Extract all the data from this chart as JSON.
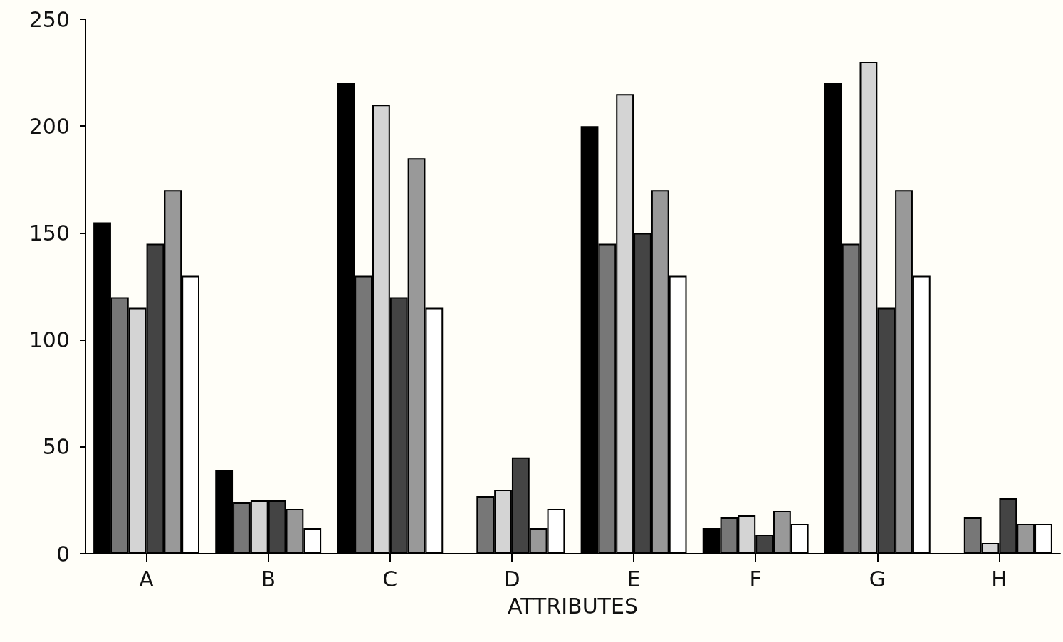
{
  "chart_data": {
    "type": "bar",
    "xlabel": "ATTRIBUTES",
    "categories": [
      "A",
      "B",
      "C",
      "D",
      "E",
      "F",
      "G",
      "H"
    ],
    "series": [
      {
        "color": "#000000",
        "values": [
          155,
          39,
          220,
          0,
          200,
          12,
          220,
          0
        ]
      },
      {
        "color": "#777777",
        "values": [
          120,
          24,
          130,
          27,
          145,
          17,
          145,
          17
        ]
      },
      {
        "color": "#d4d4d4",
        "values": [
          115,
          25,
          210,
          30,
          215,
          18,
          230,
          5
        ]
      },
      {
        "color": "#444444",
        "values": [
          145,
          25,
          120,
          45,
          150,
          9,
          115,
          26
        ]
      },
      {
        "color": "#999999",
        "values": [
          170,
          21,
          185,
          12,
          170,
          20,
          170,
          14
        ]
      },
      {
        "color": "#ffffff",
        "values": [
          130,
          12,
          115,
          21,
          130,
          14,
          130,
          14
        ]
      }
    ],
    "ylim": [
      0,
      250
    ],
    "yticks": [
      0,
      50,
      100,
      150,
      200,
      250
    ],
    "grid": false
  }
}
